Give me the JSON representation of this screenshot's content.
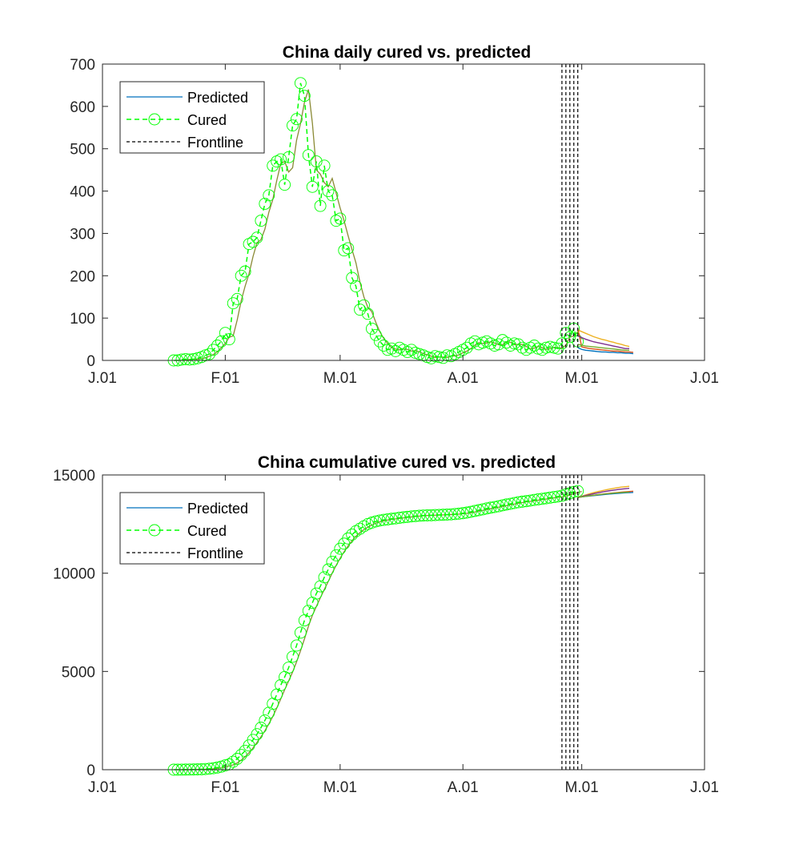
{
  "chart_data": [
    {
      "type": "line",
      "title": "China daily cured vs. predicted",
      "xlabel": "",
      "ylabel": "",
      "xlim": [
        "2020-01-01",
        "2020-06-01"
      ],
      "ylim": [
        0,
        700
      ],
      "yticks": [
        0,
        100,
        200,
        300,
        400,
        500,
        600,
        700
      ],
      "xticks": [
        {
          "date": "2020-01-01",
          "label": "J.01"
        },
        {
          "date": "2020-02-01",
          "label": "F.01"
        },
        {
          "date": "2020-03-01",
          "label": "M.01"
        },
        {
          "date": "2020-04-01",
          "label": "A.01"
        },
        {
          "date": "2020-05-01",
          "label": "M.01"
        },
        {
          "date": "2020-06-01",
          "label": "J.01"
        }
      ],
      "grid": false,
      "legend": {
        "position": "top-left",
        "entries": [
          "Predicted",
          "Cured",
          "Frontline"
        ]
      },
      "cured": {
        "name": "Cured",
        "color": "#00FF00",
        "start": "2020-01-19",
        "values": [
          0,
          0,
          2,
          3,
          2,
          3,
          5,
          8,
          12,
          15,
          25,
          35,
          45,
          65,
          50,
          135,
          145,
          200,
          210,
          275,
          280,
          290,
          330,
          370,
          390,
          460,
          470,
          475,
          415,
          480,
          555,
          570,
          655,
          625,
          485,
          410,
          470,
          365,
          460,
          400,
          390,
          330,
          335,
          260,
          265,
          195,
          175,
          120,
          130,
          110,
          75,
          60,
          45,
          35,
          25,
          28,
          22,
          30,
          25,
          20,
          25,
          18,
          15,
          12,
          8,
          5,
          10,
          8,
          6,
          12,
          10,
          15,
          20,
          25,
          30,
          40,
          45,
          38,
          42,
          45,
          40,
          35,
          38,
          48,
          42,
          35,
          40,
          38,
          30,
          25,
          30,
          35,
          28,
          25,
          30,
          32,
          30,
          28,
          40,
          65,
          55,
          75,
          45
        ]
      },
      "fitted": {
        "name": "Predicted",
        "color": "#8A8A35",
        "start": "2020-01-20",
        "values": [
          0,
          0,
          1,
          2,
          3,
          3,
          4,
          6,
          10,
          14,
          20,
          30,
          40,
          55,
          58,
          95,
          140,
          175,
          205,
          245,
          278,
          285,
          310,
          350,
          380,
          425,
          465,
          470,
          445,
          455,
          520,
          560,
          610,
          640,
          560,
          450,
          440,
          420,
          410,
          430,
          395,
          360,
          330,
          295,
          262,
          230,
          185,
          150,
          125,
          115,
          90,
          68,
          52,
          40,
          30,
          27,
          25,
          27,
          26,
          22,
          23,
          20,
          16,
          13,
          10,
          7,
          8,
          8,
          7,
          10,
          11,
          13,
          18,
          22,
          28,
          36,
          42,
          40,
          41,
          44,
          41,
          37,
          37,
          44,
          43,
          37,
          38,
          38,
          33,
          27,
          29,
          33,
          30,
          26,
          28,
          31,
          30,
          29,
          36,
          55,
          58,
          68,
          50
        ]
      },
      "frontline_dates": [
        "2020-04-26",
        "2020-04-27",
        "2020-04-28",
        "2020-04-29",
        "2020-04-30"
      ],
      "frontline_color": "#000000",
      "predictions": [
        {
          "color": "#0072BD",
          "start": "2020-04-30",
          "values": [
            30,
            26,
            24,
            23,
            22,
            21,
            20,
            20,
            19,
            19,
            18,
            18,
            17,
            17,
            16
          ]
        },
        {
          "color": "#D95319",
          "start": "2020-04-30",
          "values": [
            75,
            32,
            30,
            28,
            27,
            26,
            25,
            24,
            23,
            22,
            22,
            21,
            20,
            20,
            19
          ]
        },
        {
          "color": "#EDB120",
          "start": "2020-04-30",
          "values": [
            72,
            68,
            64,
            60,
            56,
            53,
            50,
            48,
            45,
            43,
            40,
            38,
            35,
            33
          ]
        },
        {
          "color": "#7E2F8E",
          "start": "2020-04-30",
          "values": [
            58,
            54,
            50,
            47,
            44,
            42,
            40,
            38,
            36,
            34,
            32,
            30,
            28,
            28
          ]
        },
        {
          "color": "#77AC30",
          "start": "2020-04-30",
          "values": [
            38,
            36,
            34,
            33,
            32,
            31,
            30,
            29,
            28,
            27,
            26,
            25,
            24,
            24
          ]
        }
      ]
    },
    {
      "type": "line",
      "title": "China cumulative cured vs. predicted",
      "xlabel": "",
      "ylabel": "",
      "xlim": [
        "2020-01-01",
        "2020-06-01"
      ],
      "ylim": [
        0,
        15000
      ],
      "yticks": [
        0,
        5000,
        10000,
        15000
      ],
      "xticks": [
        {
          "date": "2020-01-01",
          "label": "J.01"
        },
        {
          "date": "2020-02-01",
          "label": "F.01"
        },
        {
          "date": "2020-03-01",
          "label": "M.01"
        },
        {
          "date": "2020-04-01",
          "label": "A.01"
        },
        {
          "date": "2020-05-01",
          "label": "M.01"
        },
        {
          "date": "2020-06-01",
          "label": "J.01"
        }
      ],
      "grid": false,
      "legend": {
        "position": "top-left",
        "entries": [
          "Predicted",
          "Cured",
          "Frontline"
        ]
      },
      "cumulative_of": "daily cured",
      "frontline_dates": [
        "2020-04-26",
        "2020-04-27",
        "2020-04-28",
        "2020-04-29",
        "2020-04-30"
      ],
      "predictions": [
        {
          "color": "#0072BD",
          "start": "2020-04-30",
          "values": [
            13850,
            13880,
            13905,
            13930,
            13950,
            13970,
            13990,
            14010,
            14030,
            14045,
            14060,
            14075,
            14090,
            14100,
            14110
          ]
        },
        {
          "color": "#D95319",
          "start": "2020-04-30",
          "values": [
            13850,
            13885,
            13915,
            13945,
            13970,
            13995,
            14020,
            14045,
            14065,
            14085,
            14105,
            14125,
            14140,
            14155,
            14170
          ]
        },
        {
          "color": "#EDB120",
          "start": "2020-04-30",
          "values": [
            13850,
            13920,
            13985,
            14045,
            14100,
            14150,
            14195,
            14240,
            14280,
            14315,
            14350,
            14380,
            14400,
            14420
          ]
        },
        {
          "color": "#7E2F8E",
          "start": "2020-04-30",
          "values": [
            13850,
            13905,
            13955,
            14000,
            14045,
            14085,
            14125,
            14160,
            14195,
            14225,
            14255,
            14280,
            14300,
            14320
          ]
        },
        {
          "color": "#77AC30",
          "start": "2020-04-30",
          "values": [
            13850,
            13885,
            13915,
            13945,
            13970,
            13995,
            14015,
            14035,
            14055,
            14075,
            14090,
            14105,
            14115,
            14125
          ]
        }
      ]
    }
  ]
}
